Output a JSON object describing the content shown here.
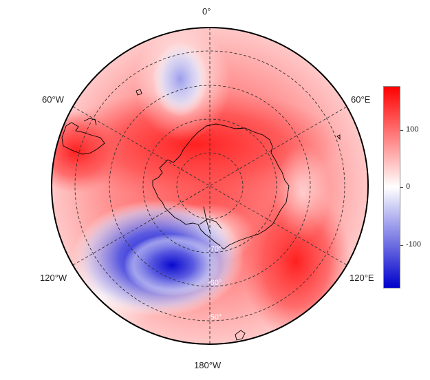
{
  "map": {
    "projection": "south-polar-stereographic",
    "meridian_labels": {
      "top": "0°",
      "upper_left": "60°W",
      "upper_right": "60°E",
      "lower_left": "120°W",
      "lower_right": "120°E",
      "bottom": "180°W"
    },
    "latitude_labels": [
      "-70°",
      "-60°",
      "-50°"
    ]
  },
  "colorbar": {
    "ticks": [
      {
        "label": "100",
        "value": 100
      },
      {
        "label": "0",
        "value": 0
      },
      {
        "label": "-100",
        "value": -100
      }
    ],
    "range": [
      -175,
      175
    ],
    "colors": {
      "low": "#0000cc",
      "mid": "#ffffff",
      "high": "#ff0000"
    }
  }
}
